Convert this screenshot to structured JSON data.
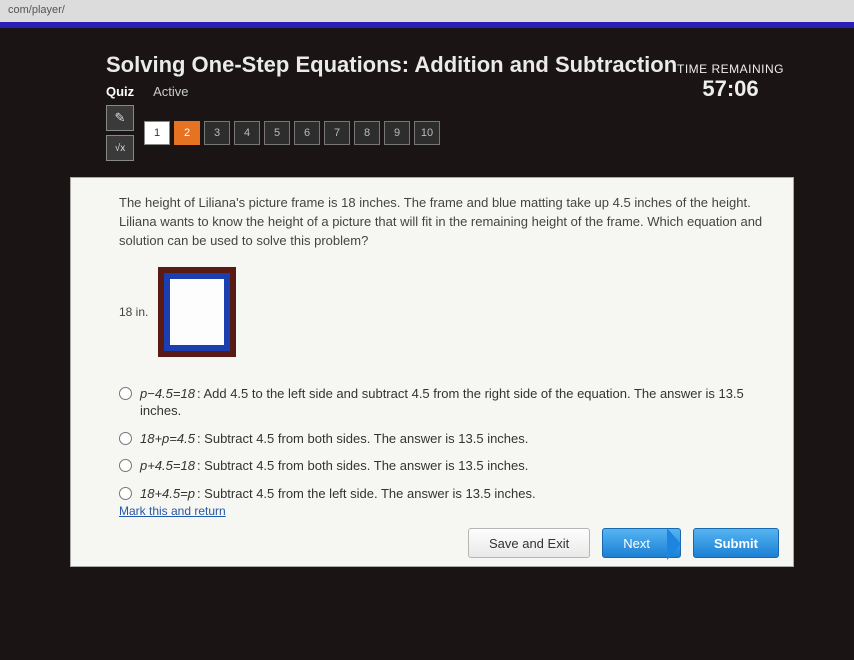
{
  "url_fragment": "com/player/",
  "header": {
    "title": "Solving One-Step Equations: Addition and Subtraction",
    "mode": "Quiz",
    "status": "Active"
  },
  "timer": {
    "label": "TIME REMAINING",
    "value": "57:06"
  },
  "tools": {
    "pencil": "✎",
    "formula": "√x"
  },
  "nav": {
    "items": [
      "1",
      "2",
      "3",
      "4",
      "5",
      "6",
      "7",
      "8",
      "9",
      "10"
    ],
    "done_index": 0,
    "current_index": 1
  },
  "problem": {
    "text": "The height of Liliana's picture frame is 18 inches. The frame and blue matting take up 4.5 inches of the height. Liliana wants to know the height of a picture that will fit in the remaining height of the frame. Which equation and solution can be used to solve this problem?",
    "figure_label": "18 in.",
    "frame_colors": {
      "outer": "#5a1a14",
      "mat": "#1b3fb0",
      "inner": "#fdfdfd"
    }
  },
  "options": [
    {
      "eq": "p−4.5=18",
      "desc": ": Add 4.5 to the left side and subtract 4.5 from the right side of the equation. The answer is 13.5 inches."
    },
    {
      "eq": "18+p=4.5",
      "desc": ": Subtract 4.5 from both sides. The answer is 13.5 inches."
    },
    {
      "eq": "p+4.5=18",
      "desc": ": Subtract 4.5 from both sides. The answer is 13.5 inches."
    },
    {
      "eq": "18+4.5=p",
      "desc": ": Subtract 4.5 from the left side. The answer is 13.5 inches."
    }
  ],
  "footer": {
    "mark": "Mark this and return",
    "save": "Save and Exit",
    "next": "Next",
    "submit": "Submit"
  }
}
